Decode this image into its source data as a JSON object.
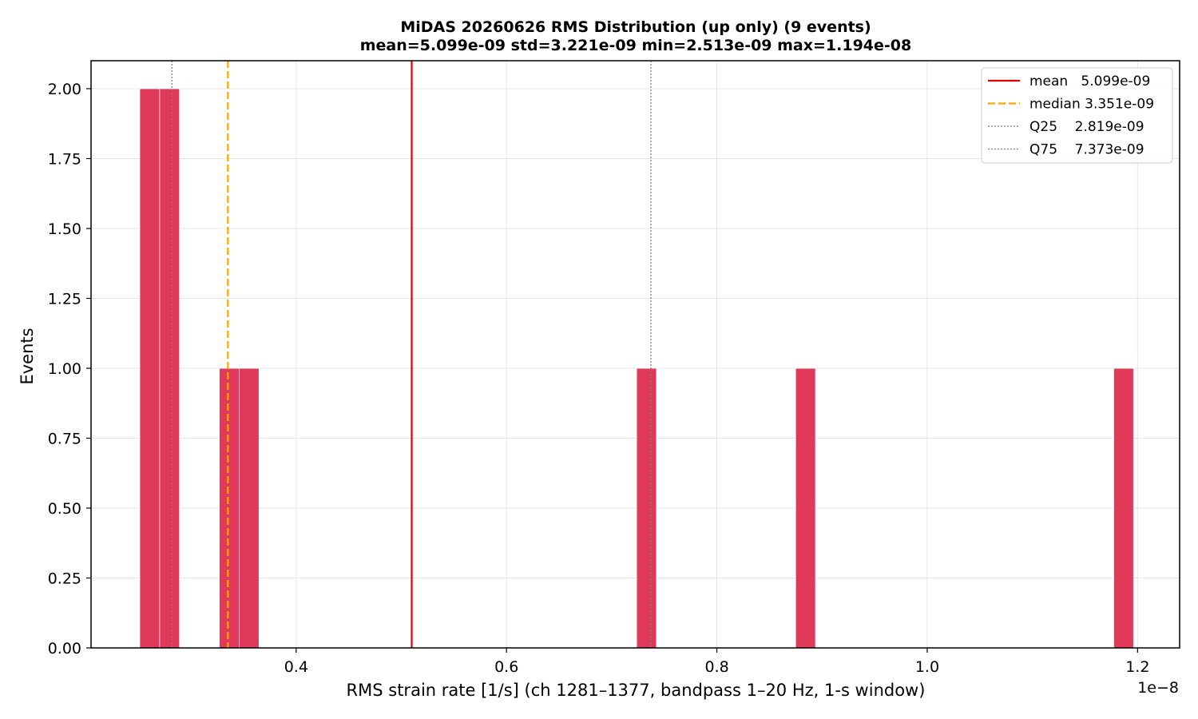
{
  "chart_data": {
    "type": "bar",
    "title": "MiDAS 20260626  RMS Distribution  (up only)  (9 events)",
    "subtitle": "mean=5.099e-09  std=3.221e-09  min=2.513e-09  max=1.194e-08",
    "xlabel": "RMS strain rate [1/s]  (ch 1281–1377, bandpass 1–20 Hz, 1-s window)",
    "ylabel": "Events",
    "x_offset_label": "1e−8",
    "xlim": [
      0.205,
      1.24
    ],
    "ylim": [
      0,
      2.1
    ],
    "x_ticks": [
      {
        "value": 0.4,
        "label": "0.4"
      },
      {
        "value": 0.6,
        "label": "0.6"
      },
      {
        "value": 0.8,
        "label": "0.8"
      },
      {
        "value": 1.0,
        "label": "1.0"
      },
      {
        "value": 1.2,
        "label": "1.2"
      }
    ],
    "y_ticks": [
      {
        "value": 0.0,
        "label": "0.00"
      },
      {
        "value": 0.25,
        "label": "0.25"
      },
      {
        "value": 0.5,
        "label": "0.50"
      },
      {
        "value": 0.75,
        "label": "0.75"
      },
      {
        "value": 1.0,
        "label": "1.00"
      },
      {
        "value": 1.25,
        "label": "1.25"
      },
      {
        "value": 1.5,
        "label": "1.50"
      },
      {
        "value": 1.75,
        "label": "1.75"
      },
      {
        "value": 2.0,
        "label": "2.00"
      }
    ],
    "grid": true,
    "bar_color": "#e0395a",
    "bins": [
      {
        "x0": 0.2513,
        "x1": 0.2702,
        "count": 2
      },
      {
        "x0": 0.2702,
        "x1": 0.2891,
        "count": 2
      },
      {
        "x0": 0.3269,
        "x1": 0.3458,
        "count": 1
      },
      {
        "x0": 0.3458,
        "x1": 0.3647,
        "count": 1
      },
      {
        "x0": 0.7237,
        "x1": 0.7426,
        "count": 1
      },
      {
        "x0": 0.8749,
        "x1": 0.8938,
        "count": 1
      },
      {
        "x0": 1.1773,
        "x1": 1.1962,
        "count": 1
      }
    ],
    "reference_lines": [
      {
        "name": "mean",
        "value": 0.5099,
        "label": "mean   5.099e-09",
        "color": "#e00000",
        "style": "solid"
      },
      {
        "name": "median",
        "value": 0.3351,
        "label": "median 3.351e-09",
        "color": "#ffa500",
        "style": "dashed"
      },
      {
        "name": "q25",
        "value": 0.2819,
        "label": "Q25    2.819e-09",
        "color": "#808080",
        "style": "dotted"
      },
      {
        "name": "q75",
        "value": 0.7373,
        "label": "Q75    7.373e-09",
        "color": "#808080",
        "style": "dotted"
      }
    ],
    "legend_position": "top-right"
  }
}
